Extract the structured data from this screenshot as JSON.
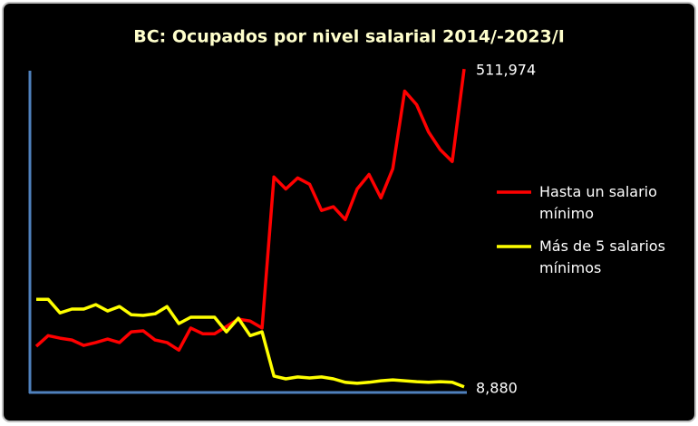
{
  "chart_data": {
    "type": "line",
    "title": "BC: Ocupados por nivel salarial 2014/-2023/I",
    "ylim": [
      0,
      515000
    ],
    "grid": false,
    "legend": "right",
    "series": [
      {
        "name": "Hasta un salario mínimo",
        "color": "#ff0000",
        "values": [
          73000,
          90000,
          86000,
          83000,
          74500,
          79000,
          84500,
          79000,
          96000,
          97500,
          83000,
          79000,
          67000,
          102000,
          93000,
          93000,
          104500,
          116000,
          113000,
          102000,
          341000,
          322000,
          339500,
          329500,
          288000,
          294000,
          273500,
          322000,
          345000,
          308000,
          354000,
          477000,
          455500,
          412500,
          384000,
          365500,
          511974
        ],
        "value_labels": [
          null,
          null,
          null,
          null,
          null,
          null,
          null,
          null,
          null,
          null,
          null,
          null,
          null,
          null,
          null,
          null,
          null,
          null,
          null,
          null,
          null,
          null,
          null,
          null,
          null,
          null,
          null,
          null,
          null,
          null,
          null,
          null,
          null,
          null,
          null,
          null,
          "511,974"
        ]
      },
      {
        "name": "Más de 5 salarios mínimos",
        "color": "#ffff00",
        "values": [
          147500,
          147500,
          126000,
          132000,
          132000,
          139000,
          129000,
          136000,
          123000,
          122000,
          124500,
          136000,
          109000,
          119000,
          119000,
          119000,
          96000,
          117500,
          90000,
          96000,
          26000,
          21500,
          24500,
          23000,
          24500,
          21500,
          16000,
          14500,
          16000,
          18500,
          20000,
          18500,
          17000,
          16000,
          17000,
          16000,
          8880
        ],
        "value_labels": [
          null,
          null,
          null,
          null,
          null,
          null,
          null,
          null,
          null,
          null,
          null,
          null,
          null,
          null,
          null,
          null,
          null,
          null,
          null,
          null,
          null,
          null,
          null,
          null,
          null,
          null,
          null,
          null,
          null,
          null,
          null,
          null,
          null,
          null,
          null,
          null,
          "8,880"
        ]
      }
    ]
  }
}
